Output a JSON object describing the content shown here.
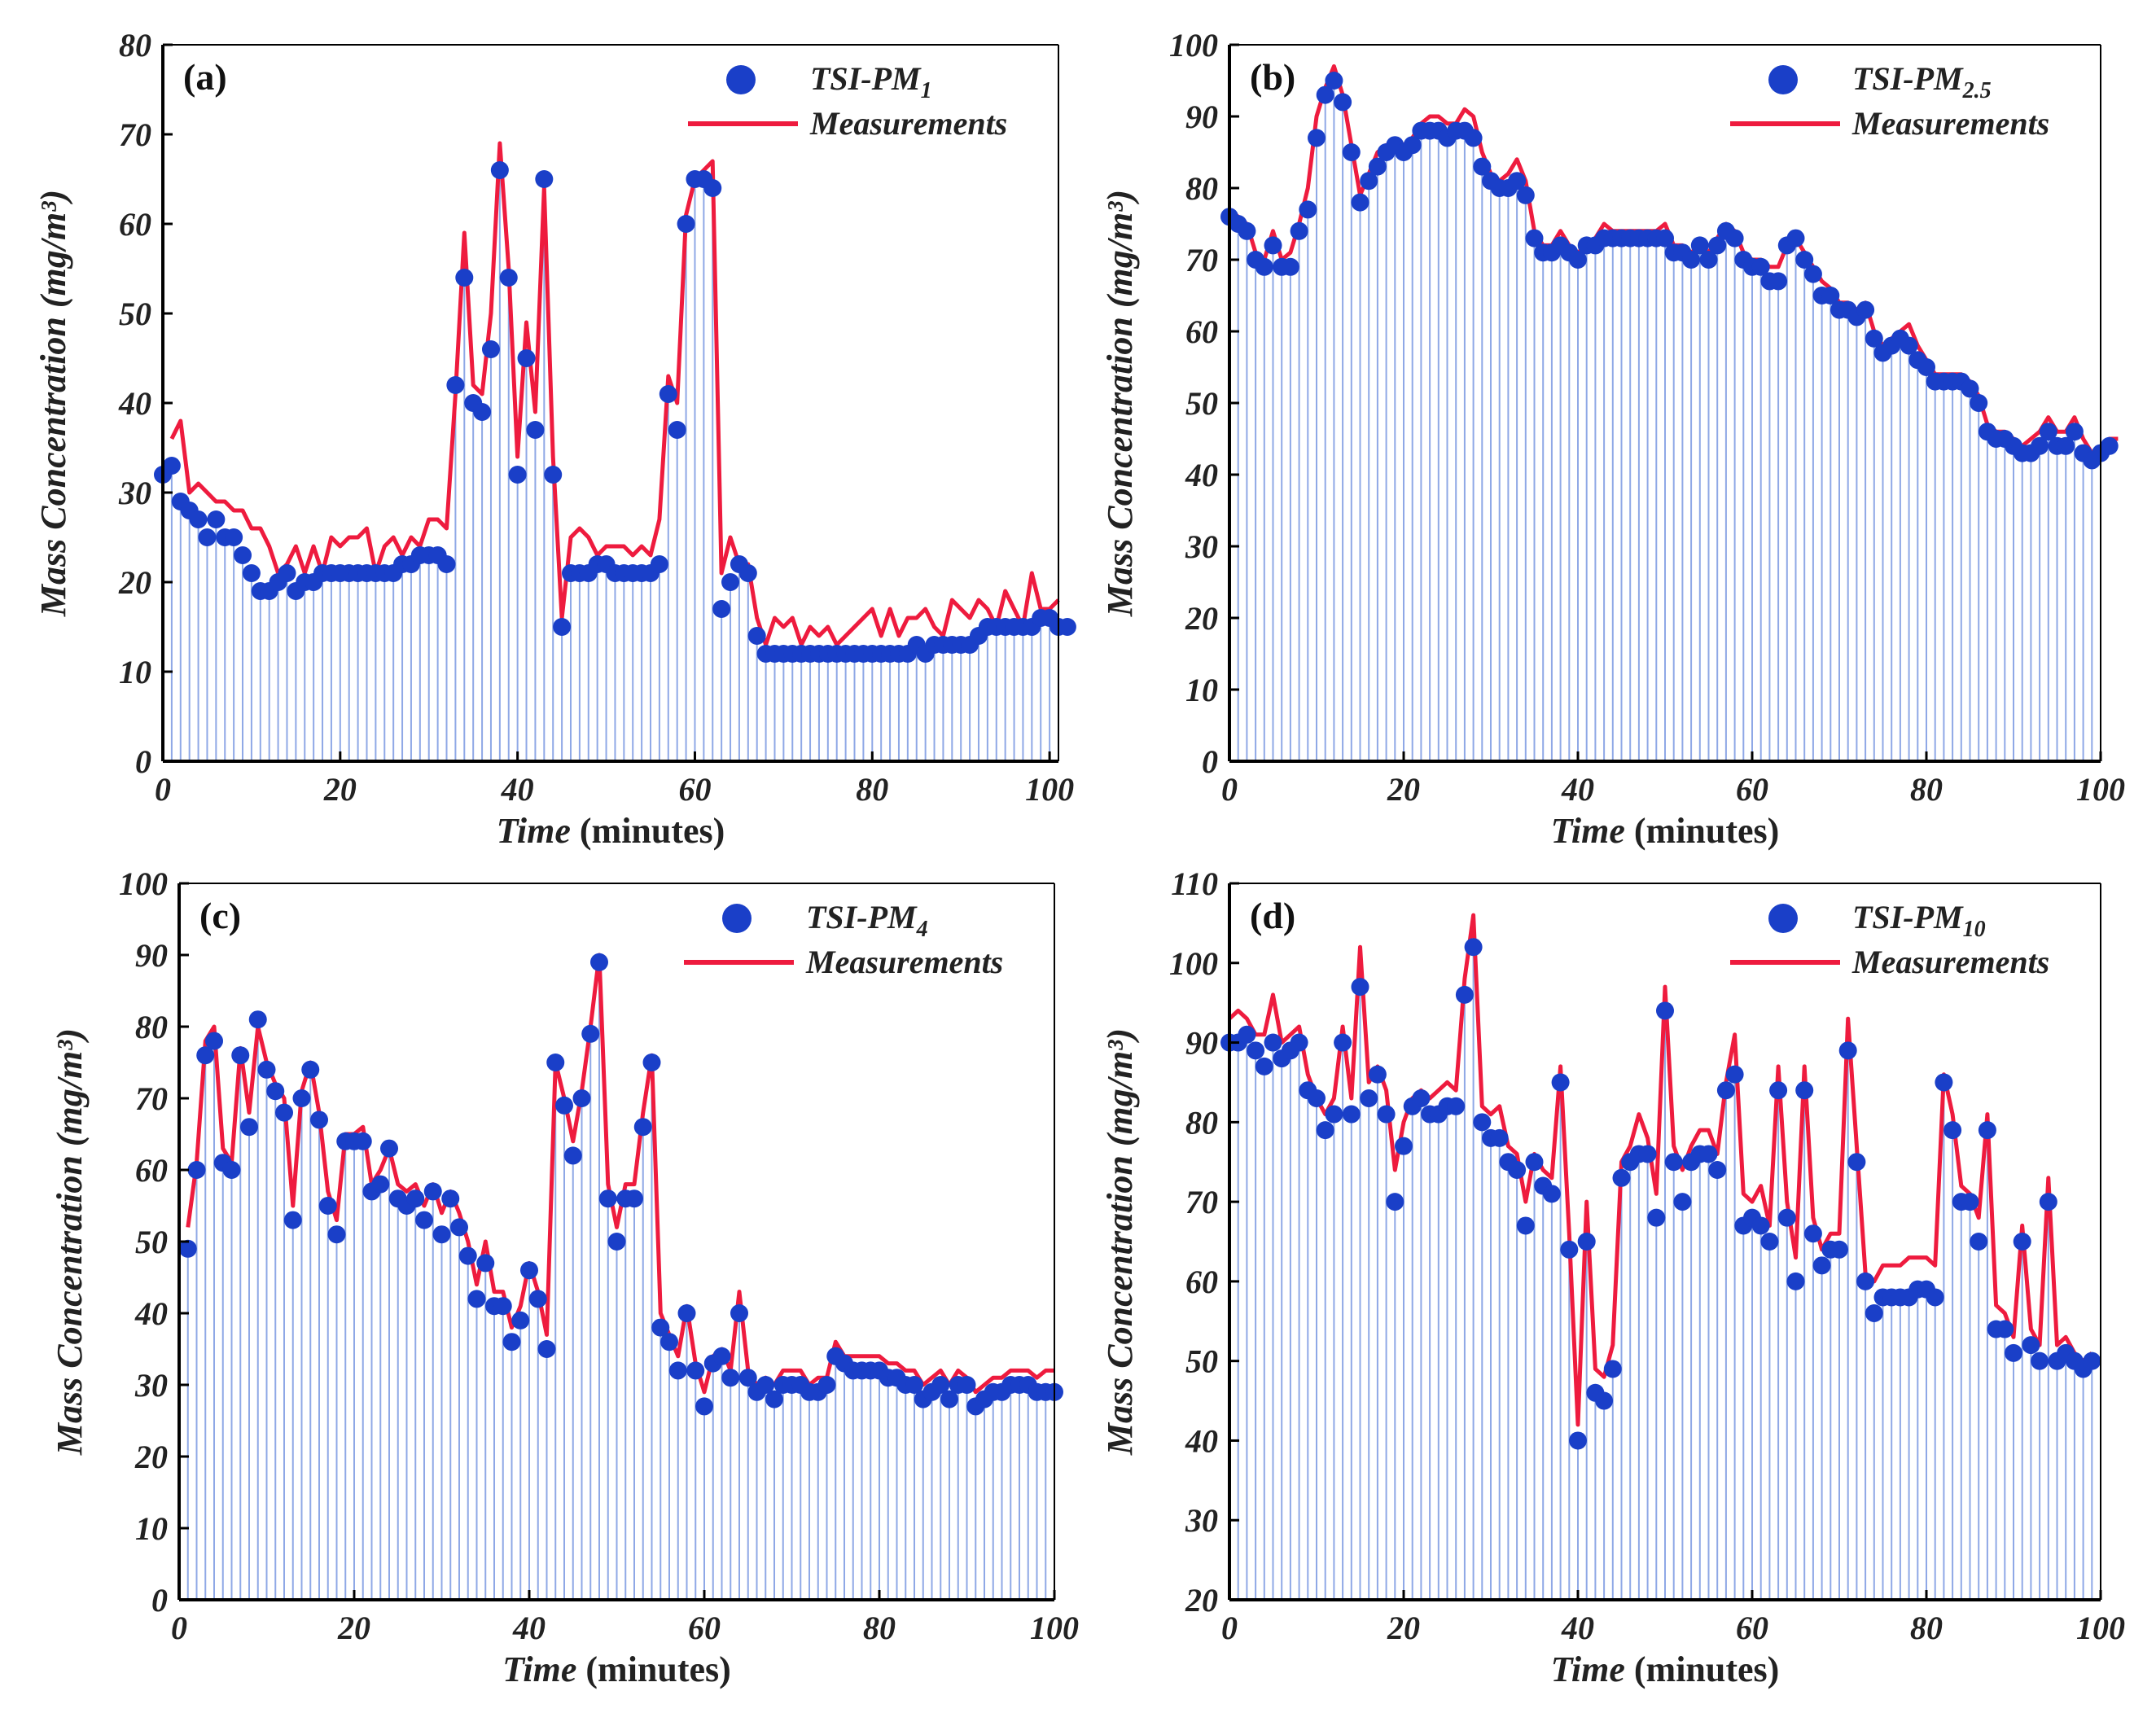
{
  "figure": {
    "xlabel_main": "Time",
    "xlabel_unit": "(minutes)",
    "ylabel": "Mass Concentration",
    "yunit": "(mg/m³)"
  },
  "colors": {
    "marker": "#1a3fc8",
    "line": "#ee1b3e",
    "stem": "#8fa8e6"
  },
  "chart_data": [
    {
      "type": "line",
      "panel": "(a)",
      "title": "",
      "legend": {
        "series_base": "TSI-PM",
        "series_sub": "1",
        "line": "Measurements",
        "position": "top-right"
      },
      "xlabel": "Time (minutes)",
      "ylabel": "Mass Concentration (mg/m³)",
      "xlim": [
        0,
        101
      ],
      "ylim": [
        0,
        80
      ],
      "xticks": [
        0,
        20,
        40,
        60,
        80,
        100
      ],
      "yticks": [
        0,
        10,
        20,
        30,
        40,
        50,
        60,
        70,
        80
      ],
      "series": [
        {
          "name": "TSI-PM1",
          "kind": "marker+stem",
          "x_start": 0,
          "values": [
            32,
            33,
            29,
            28,
            27,
            25,
            27,
            25,
            25,
            23,
            21,
            19,
            19,
            20,
            21,
            19,
            20,
            20,
            21,
            21,
            21,
            21,
            21,
            21,
            21,
            21,
            21,
            22,
            22,
            23,
            23,
            23,
            22,
            42,
            54,
            40,
            39,
            46,
            66,
            54,
            32,
            45,
            37,
            65,
            32,
            15,
            21,
            21,
            21,
            22,
            22,
            21,
            21,
            21,
            21,
            21,
            22,
            41,
            37,
            60,
            65,
            65,
            64,
            17,
            20,
            22,
            21,
            14,
            12,
            12,
            12,
            12,
            12,
            12,
            12,
            12,
            12,
            12,
            12,
            12,
            12,
            12,
            12,
            12,
            12,
            13,
            12,
            13,
            13,
            13,
            13,
            13,
            14,
            15,
            15,
            15,
            15,
            15,
            15,
            16,
            16,
            15,
            15
          ]
        },
        {
          "name": "Measurements",
          "kind": "line",
          "x_start": 1,
          "values": [
            36,
            38,
            30,
            31,
            30,
            29,
            29,
            28,
            28,
            26,
            26,
            24,
            21,
            22,
            24,
            21,
            24,
            21,
            25,
            24,
            25,
            25,
            26,
            21,
            24,
            25,
            23,
            25,
            24,
            27,
            27,
            26,
            41,
            59,
            42,
            41,
            50,
            69,
            55,
            34,
            49,
            39,
            64,
            34,
            16,
            25,
            26,
            25,
            23,
            24,
            24,
            24,
            23,
            24,
            23,
            27,
            43,
            40,
            61,
            65,
            66,
            67,
            21,
            25,
            22,
            22,
            16,
            13,
            16,
            15,
            16,
            13,
            15,
            14,
            15,
            13,
            14,
            15,
            16,
            17,
            14,
            17,
            14,
            16,
            16,
            17,
            15,
            14,
            18,
            17,
            16,
            18,
            17,
            15,
            19,
            17,
            15,
            21,
            17,
            17,
            18
          ]
        }
      ]
    },
    {
      "type": "line",
      "panel": "(b)",
      "title": "",
      "legend": {
        "series_base": "TSI-PM",
        "series_sub": "2.5",
        "line": "Measurements",
        "position": "top-right"
      },
      "xlabel": "Time (minutes)",
      "ylabel": "Mass Concentration (mg/m³)",
      "xlim": [
        0,
        100
      ],
      "ylim": [
        0,
        100
      ],
      "xticks": [
        0,
        20,
        40,
        60,
        80,
        100
      ],
      "yticks": [
        0,
        10,
        20,
        30,
        40,
        50,
        60,
        70,
        80,
        90,
        100
      ],
      "series": [
        {
          "name": "TSI-PM2.5",
          "kind": "marker+stem",
          "x_start": 0,
          "values": [
            76,
            75,
            74,
            70,
            69,
            72,
            69,
            69,
            74,
            77,
            87,
            93,
            95,
            92,
            85,
            78,
            81,
            83,
            85,
            86,
            85,
            86,
            88,
            88,
            88,
            87,
            88,
            88,
            87,
            83,
            81,
            80,
            80,
            81,
            79,
            73,
            71,
            71,
            72,
            71,
            70,
            72,
            72,
            73,
            73,
            73,
            73,
            73,
            73,
            73,
            73,
            71,
            71,
            70,
            72,
            70,
            72,
            74,
            73,
            70,
            69,
            69,
            67,
            67,
            72,
            73,
            70,
            68,
            65,
            65,
            63,
            63,
            62,
            63,
            59,
            57,
            58,
            59,
            58,
            56,
            55,
            53,
            53,
            53,
            53,
            52,
            50,
            46,
            45,
            45,
            44,
            43,
            43,
            44,
            46,
            44,
            44,
            46,
            43,
            42,
            43,
            44,
            44
          ]
        },
        {
          "name": "Measurements",
          "kind": "line",
          "x_start": 0,
          "values": [
            77,
            76,
            75,
            71,
            70,
            74,
            70,
            71,
            75,
            80,
            90,
            94,
            97,
            93,
            86,
            79,
            82,
            85,
            86,
            86,
            86,
            87,
            89,
            90,
            90,
            89,
            89,
            91,
            90,
            85,
            82,
            81,
            82,
            84,
            81,
            74,
            72,
            72,
            74,
            72,
            71,
            72,
            73,
            75,
            74,
            74,
            74,
            74,
            74,
            74,
            75,
            72,
            72,
            71,
            72,
            71,
            73,
            75,
            74,
            71,
            70,
            70,
            69,
            69,
            72,
            73,
            71,
            69,
            67,
            66,
            64,
            64,
            63,
            64,
            60,
            58,
            59,
            60,
            61,
            58,
            56,
            54,
            54,
            54,
            54,
            53,
            51,
            47,
            46,
            46,
            45,
            44,
            45,
            46,
            48,
            46,
            46,
            48,
            45,
            43,
            44,
            45,
            45
          ]
        }
      ]
    },
    {
      "type": "line",
      "panel": "(c)",
      "title": "",
      "legend": {
        "series_base": "TSI-PM",
        "series_sub": "4",
        "line": "Measurements",
        "position": "top-right"
      },
      "xlabel": "Time (minutes)",
      "ylabel": "Mass Concentration (mg/m³)",
      "xlim": [
        0,
        100
      ],
      "ylim": [
        0,
        100
      ],
      "xticks": [
        0,
        20,
        40,
        60,
        80,
        100
      ],
      "yticks": [
        0,
        10,
        20,
        30,
        40,
        50,
        60,
        70,
        80,
        90,
        100
      ],
      "series": [
        {
          "name": "TSI-PM4",
          "kind": "marker+stem",
          "x_start": 1,
          "values": [
            49,
            60,
            76,
            78,
            61,
            60,
            76,
            66,
            81,
            74,
            71,
            68,
            53,
            70,
            74,
            67,
            55,
            51,
            64,
            64,
            64,
            57,
            58,
            63,
            56,
            55,
            56,
            53,
            57,
            51,
            56,
            52,
            48,
            42,
            47,
            41,
            41,
            36,
            39,
            46,
            42,
            35,
            75,
            69,
            62,
            70,
            79,
            89,
            56,
            50,
            56,
            56,
            66,
            75,
            38,
            36,
            32,
            40,
            32,
            27,
            33,
            34,
            31,
            40,
            31,
            29,
            30,
            28,
            30,
            30,
            30,
            29,
            29,
            30,
            34,
            33,
            32,
            32,
            32,
            32,
            31,
            31,
            30,
            30,
            28,
            29,
            30,
            28,
            30,
            30,
            27,
            28,
            29,
            29,
            30,
            30,
            30,
            29,
            29,
            29
          ]
        },
        {
          "name": "Measurements",
          "kind": "line",
          "x_start": 1,
          "values": [
            52,
            61,
            78,
            80,
            63,
            61,
            77,
            68,
            80,
            75,
            72,
            70,
            55,
            71,
            75,
            68,
            57,
            53,
            65,
            65,
            66,
            58,
            60,
            63,
            58,
            57,
            58,
            55,
            58,
            54,
            57,
            54,
            50,
            44,
            50,
            43,
            43,
            38,
            41,
            47,
            43,
            37,
            75,
            70,
            64,
            71,
            80,
            90,
            58,
            52,
            58,
            58,
            68,
            76,
            40,
            37,
            34,
            41,
            33,
            29,
            34,
            35,
            32,
            43,
            32,
            30,
            31,
            30,
            32,
            32,
            32,
            30,
            31,
            31,
            36,
            34,
            34,
            34,
            34,
            34,
            33,
            33,
            32,
            32,
            30,
            31,
            32,
            30,
            32,
            31,
            29,
            30,
            31,
            31,
            32,
            32,
            32,
            31,
            32,
            32
          ]
        }
      ]
    },
    {
      "type": "line",
      "panel": "(d)",
      "title": "",
      "legend": {
        "series_base": "TSI-PM",
        "series_sub": "10",
        "line": "Measurements",
        "position": "top-right"
      },
      "xlabel": "Time (minutes)",
      "ylabel": "Mass Concentration (mg/m³)",
      "xlim": [
        0,
        100
      ],
      "ylim": [
        20,
        110
      ],
      "xticks": [
        0,
        20,
        40,
        60,
        80,
        100
      ],
      "yticks": [
        20,
        30,
        40,
        50,
        60,
        70,
        80,
        90,
        100,
        110
      ],
      "series": [
        {
          "name": "TSI-PM10",
          "kind": "marker+stem",
          "x_start": 0,
          "values": [
            90,
            90,
            91,
            89,
            87,
            90,
            88,
            89,
            90,
            84,
            83,
            79,
            81,
            90,
            81,
            97,
            83,
            86,
            81,
            70,
            77,
            82,
            83,
            81,
            81,
            82,
            82,
            96,
            102,
            80,
            78,
            78,
            75,
            74,
            67,
            75,
            72,
            71,
            85,
            64,
            40,
            65,
            46,
            45,
            49,
            73,
            75,
            76,
            76,
            68,
            94,
            75,
            70,
            75,
            76,
            76,
            74,
            84,
            86,
            67,
            68,
            67,
            65,
            84,
            68,
            60,
            84,
            66,
            62,
            64,
            64,
            89,
            75,
            60,
            56,
            58,
            58,
            58,
            58,
            59,
            59,
            58,
            85,
            79,
            70,
            70,
            65,
            79,
            54,
            54,
            51,
            65,
            52,
            50,
            70,
            50,
            51,
            50,
            49,
            50
          ]
        },
        {
          "name": "Measurements",
          "kind": "line",
          "x_start": 0,
          "values": [
            93,
            94,
            93,
            91,
            91,
            96,
            90,
            91,
            92,
            86,
            83,
            81,
            83,
            92,
            83,
            102,
            85,
            87,
            84,
            74,
            80,
            83,
            84,
            83,
            84,
            85,
            84,
            98,
            106,
            82,
            81,
            82,
            77,
            76,
            70,
            76,
            74,
            73,
            87,
            66,
            42,
            70,
            49,
            48,
            52,
            75,
            77,
            81,
            78,
            71,
            97,
            77,
            74,
            77,
            79,
            79,
            76,
            85,
            91,
            71,
            70,
            72,
            67,
            87,
            70,
            63,
            87,
            68,
            64,
            66,
            66,
            93,
            77,
            61,
            60,
            62,
            62,
            62,
            63,
            63,
            63,
            62,
            86,
            81,
            72,
            71,
            68,
            81,
            57,
            56,
            53,
            67,
            54,
            52,
            73,
            52,
            53,
            51,
            50,
            51
          ]
        }
      ]
    }
  ]
}
